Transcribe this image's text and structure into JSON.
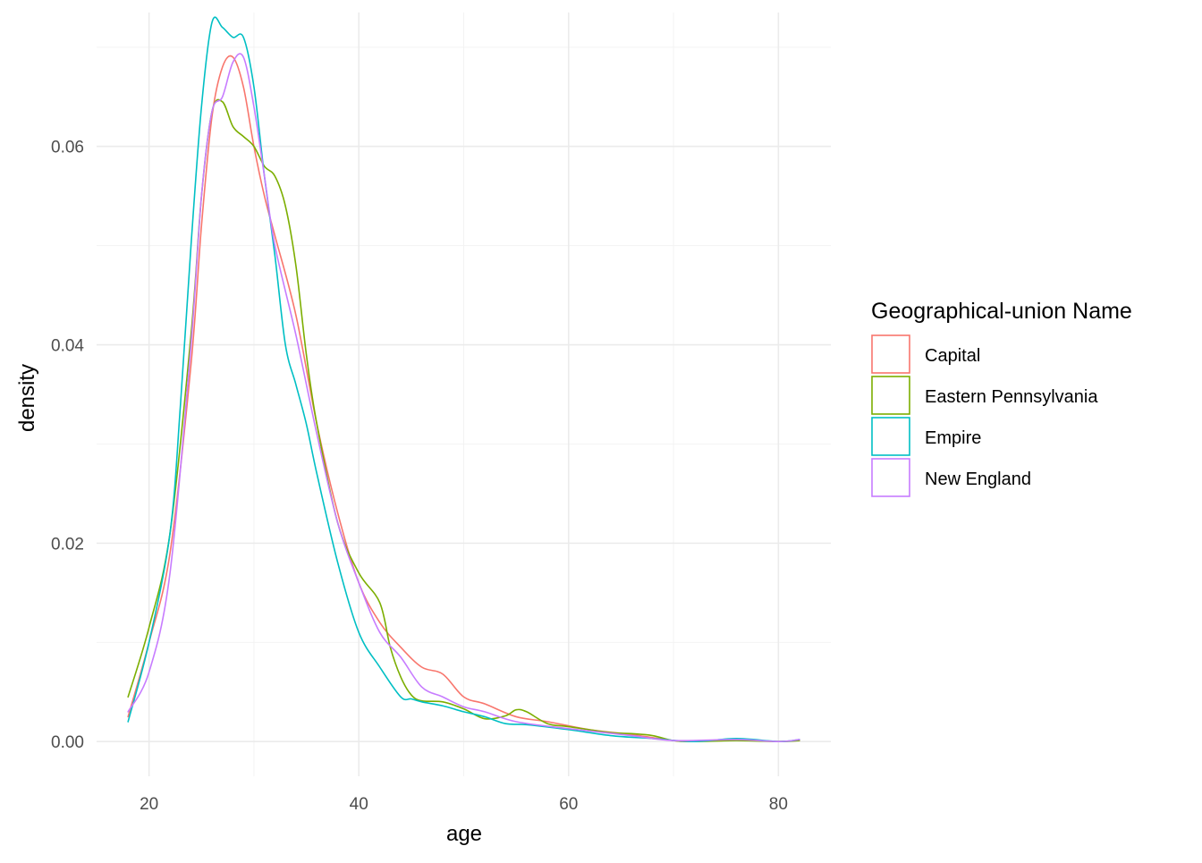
{
  "chart_data": {
    "type": "line",
    "title": "",
    "xlabel": "age",
    "ylabel": "density",
    "xlim": [
      15,
      85
    ],
    "ylim": [
      -0.0035,
      0.0735
    ],
    "x_ticks": [
      20,
      40,
      60,
      80
    ],
    "x_tick_labels": [
      "20",
      "40",
      "60",
      "80"
    ],
    "y_ticks": [
      0,
      0.02,
      0.04,
      0.06
    ],
    "y_tick_labels": [
      "0.00",
      "0.02",
      "0.04",
      "0.06"
    ],
    "grid": true,
    "legend": {
      "title": "Geographical-union Name",
      "position": "right"
    },
    "series": [
      {
        "name": "Capital",
        "color": "#F8766D",
        "x": [
          18,
          20,
          22,
          24,
          25,
          26,
          27,
          28,
          29,
          30,
          31,
          32,
          34,
          36,
          38,
          40,
          42,
          44,
          46,
          48,
          50,
          52,
          55,
          58,
          62,
          66,
          70,
          72,
          76,
          80,
          82
        ],
        "y": [
          0.0025,
          0.01,
          0.019,
          0.038,
          0.052,
          0.063,
          0.068,
          0.069,
          0.066,
          0.06,
          0.055,
          0.051,
          0.043,
          0.032,
          0.023,
          0.016,
          0.012,
          0.0095,
          0.0075,
          0.0068,
          0.0045,
          0.0038,
          0.0025,
          0.002,
          0.0012,
          0.0007,
          0.0001,
          0.0,
          0.0002,
          0.0,
          0.0001
        ]
      },
      {
        "name": "Eastern Pennsylvania",
        "color": "#7CAE00",
        "x": [
          18,
          20,
          22,
          24,
          25,
          26,
          27,
          28,
          29,
          30,
          31,
          32,
          33,
          34,
          35,
          36,
          38,
          40,
          42,
          43,
          44,
          45,
          46,
          48,
          50,
          52,
          54,
          55,
          56,
          58,
          60,
          64,
          66,
          68,
          70,
          72,
          76,
          80,
          82
        ],
        "y": [
          0.0045,
          0.0115,
          0.021,
          0.041,
          0.055,
          0.0635,
          0.0645,
          0.062,
          0.061,
          0.06,
          0.058,
          0.057,
          0.054,
          0.048,
          0.039,
          0.032,
          0.022,
          0.017,
          0.014,
          0.0095,
          0.0065,
          0.0047,
          0.0041,
          0.004,
          0.0033,
          0.0023,
          0.0026,
          0.0032,
          0.003,
          0.0018,
          0.0015,
          0.0009,
          0.0008,
          0.0006,
          0.0001,
          0.0,
          0.0001,
          0.0,
          0.0001
        ]
      },
      {
        "name": "Empire",
        "color": "#00BFC4",
        "x": [
          18,
          20,
          22,
          23,
          24,
          25,
          26,
          27,
          28,
          29,
          30,
          31,
          32,
          33,
          34,
          35,
          36,
          38,
          40,
          42,
          44,
          45,
          46,
          48,
          50,
          52,
          54,
          56,
          60,
          64,
          68,
          72,
          76,
          80,
          82
        ],
        "y": [
          0.002,
          0.01,
          0.021,
          0.034,
          0.05,
          0.064,
          0.0725,
          0.072,
          0.071,
          0.071,
          0.066,
          0.057,
          0.049,
          0.04,
          0.036,
          0.032,
          0.027,
          0.018,
          0.011,
          0.0075,
          0.0045,
          0.0043,
          0.004,
          0.0036,
          0.003,
          0.0025,
          0.0018,
          0.0017,
          0.0012,
          0.0006,
          0.0003,
          0.0,
          0.0003,
          0.0,
          0.0002
        ]
      },
      {
        "name": "New England",
        "color": "#C77CFF",
        "x": [
          18,
          20,
          22,
          24,
          25,
          26,
          27,
          28,
          29,
          30,
          31,
          32,
          34,
          36,
          38,
          40,
          42,
          44,
          46,
          48,
          50,
          52,
          55,
          60,
          66,
          70,
          76,
          80,
          82
        ],
        "y": [
          0.003,
          0.007,
          0.017,
          0.04,
          0.055,
          0.0635,
          0.065,
          0.0685,
          0.069,
          0.064,
          0.057,
          0.05,
          0.041,
          0.031,
          0.022,
          0.016,
          0.011,
          0.0085,
          0.0055,
          0.0045,
          0.0035,
          0.003,
          0.002,
          0.0013,
          0.0006,
          0.0001,
          0.0002,
          0.0,
          0.0002
        ]
      }
    ]
  }
}
